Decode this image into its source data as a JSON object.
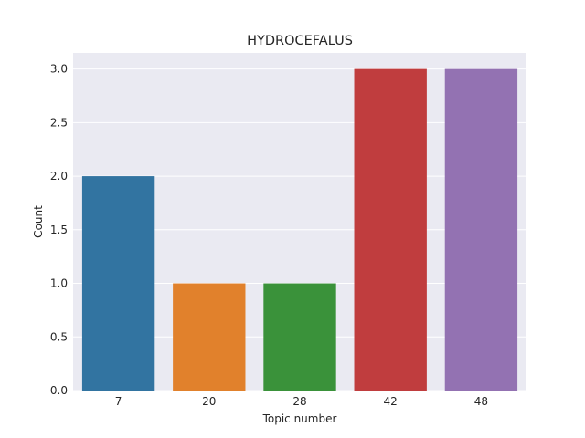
{
  "chart_data": {
    "type": "bar",
    "title": "HYDROCEFALUS",
    "xlabel": "Topic number",
    "ylabel": "Count",
    "categories": [
      "7",
      "20",
      "28",
      "42",
      "48"
    ],
    "values": [
      2,
      1,
      1,
      3,
      3
    ],
    "colors": [
      "#3274a1",
      "#e1812c",
      "#3a923a",
      "#c03d3e",
      "#9372b2"
    ],
    "ylim": [
      0,
      3.15
    ],
    "yticks": [
      "0.0",
      "0.5",
      "1.0",
      "1.5",
      "2.0",
      "2.5",
      "3.0"
    ],
    "grid": true,
    "background": "#eaeaf2"
  }
}
